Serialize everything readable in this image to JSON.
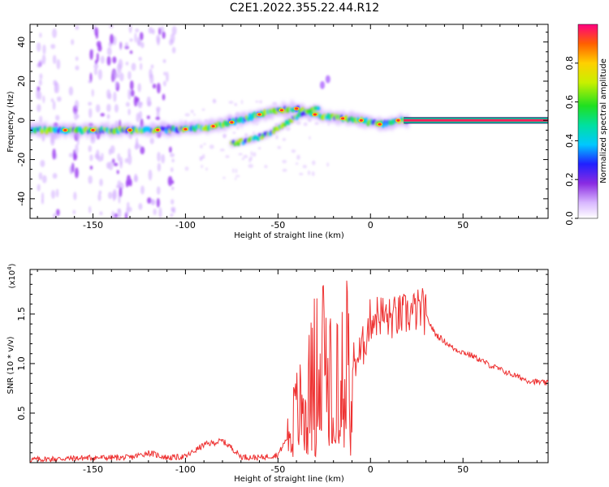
{
  "title": "C2E1.2022.355.22.44.R12",
  "colorbar": {
    "label": "Normalized spectral amplitude",
    "ticks": [
      "0.0",
      "0.2",
      "0.4",
      "0.6",
      "0.8"
    ],
    "tick_values": [
      0.0,
      0.2,
      0.4,
      0.6,
      0.8
    ],
    "range": [
      0,
      1
    ]
  },
  "chart_data": [
    {
      "type": "heatmap",
      "xlabel": "Height of straight line (km)",
      "ylabel": "Frequency (Hz)",
      "xlim": [
        -184,
        96
      ],
      "ylim": [
        -50,
        49
      ],
      "x_ticks": [
        -150,
        -100,
        -50,
        0,
        50
      ],
      "y_ticks": [
        -40,
        -20,
        0,
        20,
        40
      ],
      "main_track": [
        {
          "x": -184,
          "y": -5
        },
        {
          "x": -150,
          "y": -5
        },
        {
          "x": -120,
          "y": -5
        },
        {
          "x": -100,
          "y": -4.5
        },
        {
          "x": -85,
          "y": -3
        },
        {
          "x": -70,
          "y": 0
        },
        {
          "x": -60,
          "y": 3
        },
        {
          "x": -50,
          "y": 5
        },
        {
          "x": -40,
          "y": 6
        },
        {
          "x": -35,
          "y": 4
        },
        {
          "x": -25,
          "y": 2
        },
        {
          "x": -15,
          "y": 1
        },
        {
          "x": -5,
          "y": 0
        },
        {
          "x": 5,
          "y": -2
        },
        {
          "x": 15,
          "y": 0
        },
        {
          "x": 96,
          "y": 0
        }
      ],
      "secondary_track": [
        {
          "x": -75,
          "y": -12
        },
        {
          "x": -65,
          "y": -10
        },
        {
          "x": -55,
          "y": -7
        },
        {
          "x": -45,
          "y": -1
        },
        {
          "x": -35,
          "y": 4
        },
        {
          "x": -30,
          "y": 6
        }
      ],
      "side_feature": [
        {
          "x": -26,
          "y": 18
        },
        {
          "x": -23,
          "y": 21
        }
      ]
    },
    {
      "type": "line",
      "xlabel": "Height of straight line (km)",
      "ylabel": "SNR (10 * v/v)",
      "yscale_label": "(x10",
      "yscale_exp": "4",
      "yscale_close": ")",
      "xlim": [
        -184,
        96
      ],
      "ylim": [
        0,
        1.95
      ],
      "x_ticks": [
        -150,
        -100,
        -50,
        0,
        50
      ],
      "y_ticks": [
        0.5,
        1.0,
        1.5
      ],
      "y_tick_labels": [
        "0.5",
        "1.0",
        "1.5"
      ],
      "series": [
        {
          "color": "#ee3333",
          "envelope": [
            {
              "x": -184,
              "y": 0.03
            },
            {
              "x": -150,
              "y": 0.05
            },
            {
              "x": -130,
              "y": 0.05
            },
            {
              "x": -120,
              "y": 0.1
            },
            {
              "x": -110,
              "y": 0.05
            },
            {
              "x": -100,
              "y": 0.06
            },
            {
              "x": -90,
              "y": 0.18
            },
            {
              "x": -80,
              "y": 0.22
            },
            {
              "x": -75,
              "y": 0.15
            },
            {
              "x": -70,
              "y": 0.06
            },
            {
              "x": -60,
              "y": 0.05
            },
            {
              "x": -50,
              "y": 0.08
            },
            {
              "x": -45,
              "y": 0.25
            },
            {
              "x": -40,
              "y": 0.5
            },
            {
              "x": -35,
              "y": 0.6
            },
            {
              "x": -30,
              "y": 0.9
            },
            {
              "x": -25,
              "y": 1.0
            },
            {
              "x": -20,
              "y": 0.9
            },
            {
              "x": -15,
              "y": 1.2
            },
            {
              "x": -10,
              "y": 1.0
            },
            {
              "x": -5,
              "y": 1.1
            },
            {
              "x": 0,
              "y": 1.45
            },
            {
              "x": 5,
              "y": 1.5
            },
            {
              "x": 10,
              "y": 1.45
            },
            {
              "x": 20,
              "y": 1.5
            },
            {
              "x": 28,
              "y": 1.55
            },
            {
              "x": 35,
              "y": 1.3
            },
            {
              "x": 45,
              "y": 1.15
            },
            {
              "x": 55,
              "y": 1.08
            },
            {
              "x": 65,
              "y": 0.98
            },
            {
              "x": 75,
              "y": 0.9
            },
            {
              "x": 85,
              "y": 0.83
            },
            {
              "x": 96,
              "y": 0.8
            }
          ]
        }
      ]
    }
  ]
}
